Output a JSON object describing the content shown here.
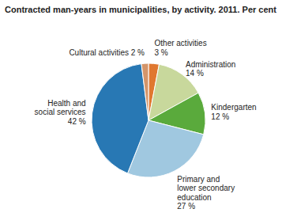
{
  "chart_data": {
    "type": "pie",
    "title": "Contracted man-years in municipalities, by activity. 2011. Per cent",
    "categories": [
      "Other activities\n3 %",
      "Administration\n14 %",
      "Kindergarten\n12 %",
      "Primary and\nlower secondary\neducation\n27 %",
      "Health and\nsocial services\n42 %",
      "Cultural activities 2 %"
    ],
    "values": [
      3,
      14,
      12,
      27,
      42,
      2
    ],
    "colors": [
      "#e07830",
      "#c8d89c",
      "#5aaa3c",
      "#a0c8e0",
      "#2878b4",
      "#d4956a"
    ]
  }
}
